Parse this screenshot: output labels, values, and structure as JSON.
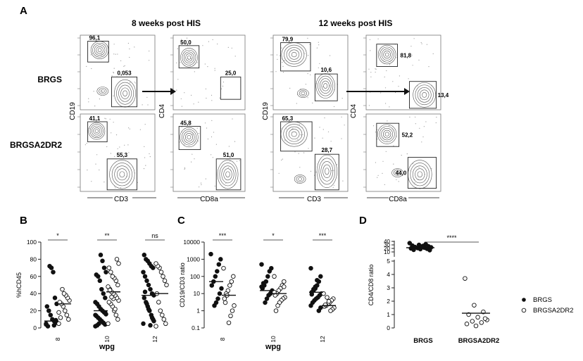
{
  "panel_letters": {
    "a": "A",
    "b": "B",
    "c": "C",
    "d": "D"
  },
  "headers": {
    "w8": "8 weeks post HIS",
    "w12": "12 weeks post HIS"
  },
  "row_labels": {
    "brgs": "BRGS",
    "brgsa2dr2": "BRGSA2DR2"
  },
  "flow_axis_labels": {
    "cd19": "CD19",
    "cd3": "CD3",
    "cd4": "CD4",
    "cd8a": "CD8a"
  },
  "flow_gates": {
    "w8_brgs_cd19cd3": [
      "96,1",
      "0,053"
    ],
    "w8_brgs_cd4cd8": [
      "50,0",
      "25,0"
    ],
    "w8_a2dr2_cd19cd3": [
      "41,1",
      "55,3"
    ],
    "w8_a2dr2_cd4cd8": [
      "45,8",
      "51,0"
    ],
    "w12_brgs_cd19cd3": [
      "79,9",
      "10,6"
    ],
    "w12_brgs_cd4cd8": [
      "81,8",
      "13,4"
    ],
    "w12_a2dr2_cd19cd3": [
      "65,3",
      "28,7"
    ],
    "w12_a2dr2_cd4cd8": [
      "52,2",
      "44,0"
    ]
  },
  "legend": {
    "brgs": "BRGS",
    "brgsa2dr2": "BRGSA2DR2"
  },
  "chart_data": [
    {
      "type": "scatter",
      "panel": "B",
      "ylabel": "%hCD45",
      "xlabel": "wpg",
      "categories": [
        "8",
        "10",
        "12"
      ],
      "ylim": [
        0,
        100
      ],
      "yticks": [
        "0",
        "20",
        "40",
        "60",
        "80",
        "100"
      ],
      "significance": [
        "*",
        "**",
        "ns"
      ],
      "series": [
        {
          "name": "BRGS",
          "filled": true,
          "values": [
            [
              4,
              6,
              8,
              10,
              15,
              20,
              25,
              28,
              35,
              65,
              70,
              72,
              2,
              5,
              9,
              3
            ],
            [
              2,
              4,
              6,
              8,
              10,
              12,
              14,
              16,
              18,
              20,
              22,
              25,
              28,
              30,
              35,
              40,
              45,
              55,
              60,
              62,
              65,
              70,
              78,
              85,
              5,
              3,
              15,
              18
            ],
            [
              5,
              10,
              15,
              20,
              25,
              30,
              35,
              38,
              40,
              45,
              50,
              55,
              60,
              65,
              70,
              72,
              75,
              78,
              80,
              85,
              8,
              12,
              3,
              22,
              28,
              42
            ]
          ]
        },
        {
          "name": "BRGSA2DR2",
          "filled": false,
          "values": [
            [
              5,
              10,
              15,
              20,
              25,
              28,
              30,
              32,
              35,
              38,
              40,
              45,
              12,
              18
            ],
            [
              5,
              10,
              15,
              20,
              25,
              28,
              30,
              32,
              35,
              38,
              40,
              42,
              45,
              48,
              50,
              55,
              58,
              60,
              65,
              70,
              75,
              80,
              22,
              34,
              36,
              44
            ],
            [
              2,
              5,
              10,
              15,
              20,
              30,
              40,
              50,
              55,
              60,
              65,
              70,
              72,
              75
            ]
          ]
        }
      ],
      "medians": [
        [
          8,
          28
        ],
        [
          20,
          42
        ],
        [
          38,
          40
        ]
      ]
    },
    {
      "type": "scatter",
      "panel": "C",
      "ylabel": "CD19/CD3 ratio",
      "xlabel": "wpg",
      "categories": [
        "8",
        "10",
        "12"
      ],
      "ylim": [
        0.1,
        10000
      ],
      "log_scale": true,
      "yticks": [
        "0.1",
        "1",
        "10",
        "100",
        "1000",
        "10000"
      ],
      "significance": [
        "***",
        "*",
        "***"
      ],
      "series": [
        {
          "name": "BRGS",
          "filled": true,
          "values": [
            [
              2000,
              1000,
              500,
              200,
              100,
              50,
              30,
              20,
              10,
              5,
              3,
              2
            ],
            [
              500,
              300,
              200,
              100,
              50,
              30,
              20,
              15,
              10,
              8,
              5,
              3,
              40,
              25,
              12
            ],
            [
              300,
              100,
              50,
              30,
              20,
              15,
              12,
              10,
              8,
              6,
              5,
              4,
              3,
              2,
              1.5,
              1,
              60,
              25,
              18,
              9
            ]
          ]
        },
        {
          "name": "BRGSA2DR2",
          "filled": false,
          "values": [
            [
              300,
              100,
              50,
              30,
              15,
              10,
              5,
              2,
              1,
              0.5,
              0.2,
              8,
              3
            ],
            [
              100,
              50,
              30,
              20,
              15,
              10,
              8,
              6,
              5,
              4,
              3,
              2,
              1,
              12,
              25
            ],
            [
              10,
              5,
              4,
              3,
              2.5,
              2,
              1.8,
              1.5,
              1.2,
              1,
              3.5,
              6,
              2.2
            ]
          ]
        }
      ],
      "medians": [
        [
          50,
          8
        ],
        [
          15,
          10
        ],
        [
          12,
          2
        ]
      ]
    },
    {
      "type": "scatter",
      "panel": "D",
      "ylabel": "CD4/CD8 ratio",
      "categories": [
        "BRGS",
        "BRGSA2DR2"
      ],
      "broken_axis": true,
      "upper_ylim": [
        0,
        40
      ],
      "upper_yticks": [
        "0",
        "10",
        "20",
        "30",
        "40"
      ],
      "lower_ylim": [
        0,
        5
      ],
      "lower_yticks": [
        "0",
        "1",
        "2",
        "3",
        "4",
        "5"
      ],
      "significance": [
        "****"
      ],
      "series": [
        {
          "name": "BRGS",
          "filled": true,
          "values": [
            35,
            32,
            30,
            28,
            26,
            25,
            24,
            23,
            22,
            21,
            20,
            19,
            18,
            16,
            15,
            27
          ]
        },
        {
          "name": "BRGSA2DR2",
          "filled": false,
          "values": [
            3.7,
            1.7,
            1.2,
            1.0,
            0.8,
            0.6,
            0.5,
            0.4,
            0.3,
            0.15,
            0.7
          ]
        }
      ],
      "medians": [
        22,
        1.1
      ]
    }
  ]
}
